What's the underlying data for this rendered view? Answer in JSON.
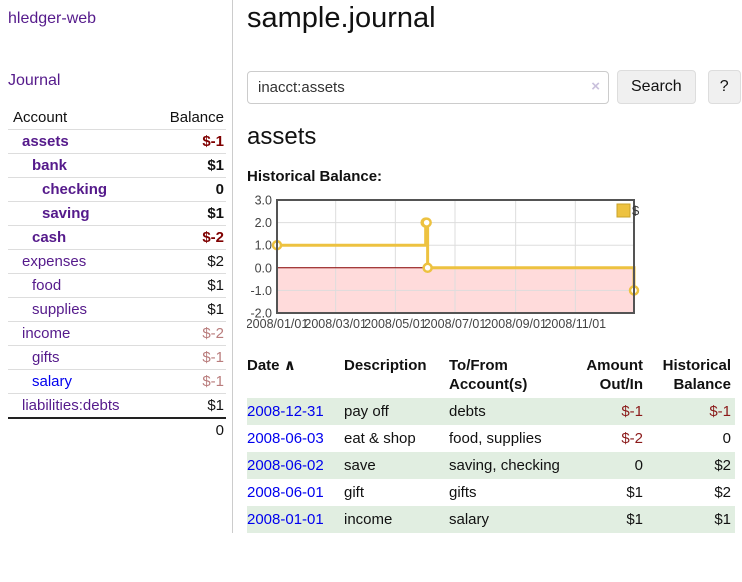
{
  "colors": {
    "link_purple": "#551a8b",
    "link_blue": "#0000ee",
    "negative_red": "#8b1a1a",
    "negative_red_bold": "#7f0000",
    "negative_red_dim": "#b97c7c",
    "row_green": "#e1eee1",
    "chart_line": "#edc240",
    "chart_border": "#545454",
    "chart_grid": "#dddddd",
    "chart_zero_line": "#8b0000",
    "chart_negative_fill": "#ffdbdb"
  },
  "sidebar": {
    "app_title": "hledger-web",
    "nav": {
      "journal_label": "Journal"
    },
    "accounts_table": {
      "headers": {
        "account": "Account",
        "balance": "Balance"
      },
      "rows": [
        {
          "name": "assets",
          "depth": 1,
          "bold": true,
          "balance": "$-1",
          "balance_class": "neg strong"
        },
        {
          "name": "bank",
          "depth": 2,
          "bold": true,
          "balance": "$1",
          "balance_class": "strong"
        },
        {
          "name": "checking",
          "depth": 3,
          "bold": true,
          "balance": "0",
          "balance_class": "strong"
        },
        {
          "name": "saving",
          "depth": 3,
          "bold": true,
          "balance": "$1",
          "balance_class": "strong"
        },
        {
          "name": "cash",
          "depth": 2,
          "bold": true,
          "balance": "$-2",
          "balance_class": "neg strong"
        },
        {
          "name": "expenses",
          "depth": 1,
          "bold": false,
          "balance": "$2",
          "balance_class": ""
        },
        {
          "name": "food",
          "depth": 2,
          "bold": false,
          "balance": "$1",
          "balance_class": ""
        },
        {
          "name": "supplies",
          "depth": 2,
          "bold": false,
          "balance": "$1",
          "balance_class": ""
        },
        {
          "name": "income",
          "depth": 1,
          "bold": false,
          "balance": "$-2",
          "balance_class": "neg dim"
        },
        {
          "name": "gifts",
          "depth": 2,
          "bold": false,
          "balance": "$-1",
          "balance_class": "neg dim"
        },
        {
          "name": "salary",
          "depth": 2,
          "bold": false,
          "balance": "$-1",
          "balance_class": "neg dim",
          "link_color": "blue"
        },
        {
          "name": "liabilities:debts",
          "depth": 1,
          "bold": false,
          "balance": "$1",
          "balance_class": ""
        }
      ],
      "total": "0"
    }
  },
  "header": {
    "title": "sample.journal"
  },
  "search": {
    "value": "inacct:assets",
    "clear_icon": "×",
    "button_label": "Search",
    "help_label": "?"
  },
  "account_page": {
    "heading": "assets",
    "chart_label": "Historical Balance:"
  },
  "chart_data": {
    "type": "line",
    "step": true,
    "title": "Historical Balance",
    "series": [
      {
        "name": "$",
        "color": "#edc240",
        "points": [
          [
            "2008-01-01",
            1
          ],
          [
            "2008-06-01",
            2
          ],
          [
            "2008-06-02",
            2
          ],
          [
            "2008-06-03",
            0
          ],
          [
            "2008-12-31",
            -1
          ]
        ]
      }
    ],
    "x_range": [
      "2008-01-01",
      "2008-12-31"
    ],
    "x_tick_labels": [
      "2008/01/01",
      "2008/03/01",
      "2008/05/01",
      "2008/07/01",
      "2008/09/01",
      "2008/11/01"
    ],
    "y_ticks": [
      3.0,
      2.0,
      1.0,
      0.0,
      -1.0,
      -2.0
    ],
    "ylim": [
      -2,
      3
    ],
    "grid": true,
    "legend": {
      "label": "$",
      "position": "top-right"
    },
    "negative_region_shaded": true
  },
  "register_table": {
    "headers": {
      "date": "Date",
      "sort_icon": "∧",
      "description": "Description",
      "accounts": "To/From Account(s)",
      "amount": "Amount Out/In",
      "balance": "Historical Balance"
    },
    "rows": [
      {
        "date": "2008-12-31",
        "description": "pay off",
        "accounts": "debts",
        "amount": "$-1",
        "amount_neg": true,
        "balance": "$-1",
        "balance_neg": true,
        "shaded": true
      },
      {
        "date": "2008-06-03",
        "description": "eat & shop",
        "accounts": "food, supplies",
        "amount": "$-2",
        "amount_neg": true,
        "balance": "0",
        "balance_neg": false,
        "shaded": false
      },
      {
        "date": "2008-06-02",
        "description": "save",
        "accounts": "saving, checking",
        "amount": "0",
        "amount_neg": false,
        "balance": "$2",
        "balance_neg": false,
        "shaded": true
      },
      {
        "date": "2008-06-01",
        "description": "gift",
        "accounts": "gifts",
        "amount": "$1",
        "amount_neg": false,
        "balance": "$2",
        "balance_neg": false,
        "shaded": false
      },
      {
        "date": "2008-01-01",
        "description": "income",
        "accounts": "salary",
        "amount": "$1",
        "amount_neg": false,
        "balance": "$1",
        "balance_neg": false,
        "shaded": true
      }
    ]
  }
}
